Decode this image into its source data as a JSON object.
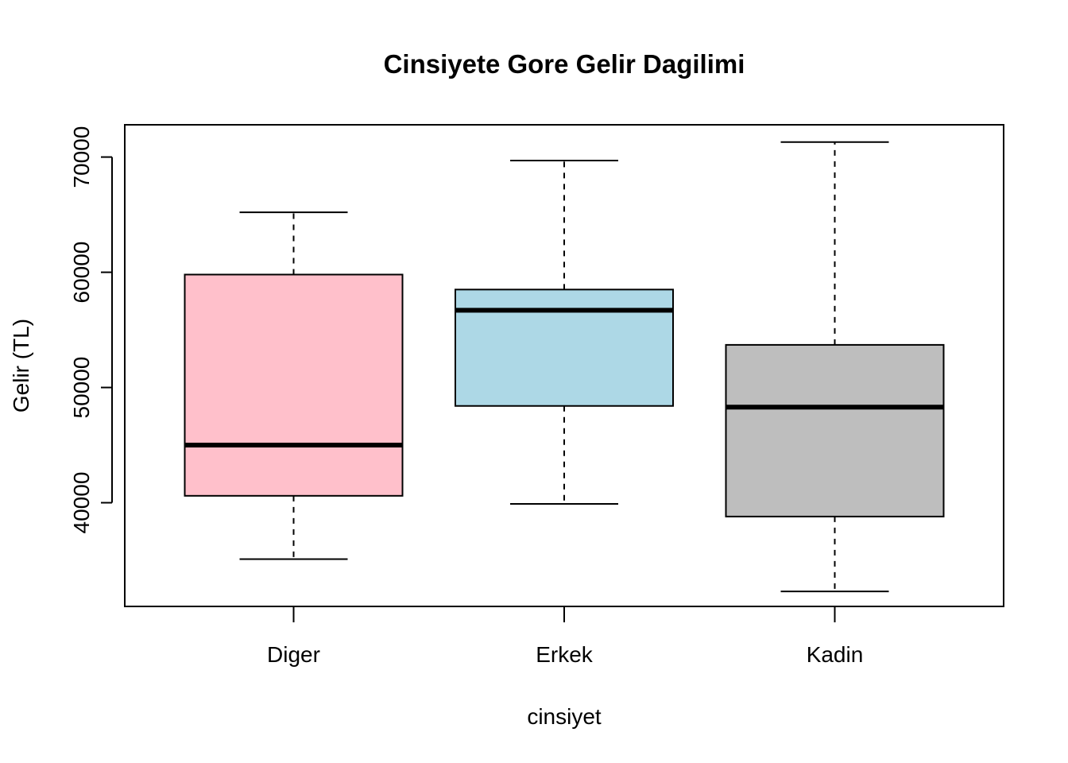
{
  "chart_data": {
    "type": "boxplot",
    "title": "Cinsiyete Gore Gelir Dagilimi",
    "xlabel": "cinsiyet",
    "ylabel": "Gelir (TL)",
    "categories": [
      "Diger",
      "Erkek",
      "Kadin"
    ],
    "ylim": [
      31000,
      72800
    ],
    "yticks": [
      40000,
      50000,
      60000,
      70000
    ],
    "yticks_labels": [
      "40000",
      "50000",
      "60000",
      "70000"
    ],
    "boxes": [
      {
        "category": "Diger",
        "fill": "#FFC0CB",
        "min": 35100,
        "q1": 40600,
        "median": 45000,
        "q3": 59800,
        "max": 65200
      },
      {
        "category": "Erkek",
        "fill": "#ADD8E6",
        "min": 39900,
        "q1": 48400,
        "median": 56700,
        "q3": 58500,
        "max": 69700
      },
      {
        "category": "Kadin",
        "fill": "#BEBEBE",
        "min": 32300,
        "q1": 38800,
        "median": 48300,
        "q3": 53700,
        "max": 71300
      }
    ]
  }
}
